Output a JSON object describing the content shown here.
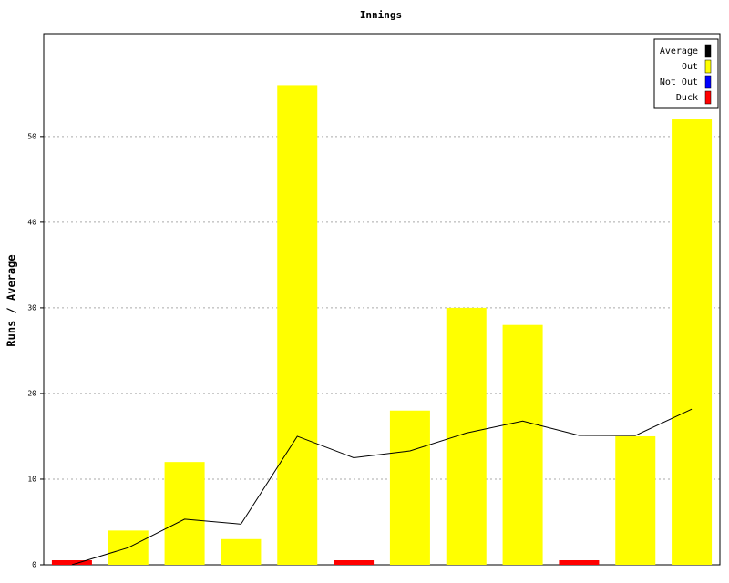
{
  "chart_data": {
    "type": "bar",
    "title": "Innings",
    "y_label": "Runs / Average",
    "categories": [
      null,
      null,
      null,
      null,
      null,
      null,
      null,
      null,
      null,
      null,
      null,
      null
    ],
    "ylim": [
      0,
      62
    ],
    "yticks": [
      0,
      10,
      20,
      30,
      40,
      50
    ],
    "grid": true,
    "legend": "top-right",
    "series": [
      {
        "name": "Average",
        "color": "#000000",
        "kind": "line",
        "values": [
          0,
          2,
          5.33,
          4.75,
          15,
          12.5,
          13.29,
          15.38,
          16.78,
          15.1,
          15.09,
          18.17
        ]
      },
      {
        "name": "Out",
        "color": "#ffff00",
        "kind": "bar",
        "values": [
          null,
          4,
          12,
          3,
          56,
          null,
          18,
          30,
          28,
          null,
          15,
          52
        ]
      },
      {
        "name": "Not Out",
        "color": "#0000ff",
        "kind": "bar",
        "values": [
          null,
          null,
          null,
          null,
          null,
          null,
          null,
          null,
          null,
          null,
          null,
          null
        ]
      },
      {
        "name": "Duck",
        "color": "#ff0000",
        "kind": "duck",
        "values": [
          0,
          null,
          null,
          null,
          null,
          0,
          null,
          null,
          null,
          0,
          null,
          null
        ]
      }
    ]
  }
}
